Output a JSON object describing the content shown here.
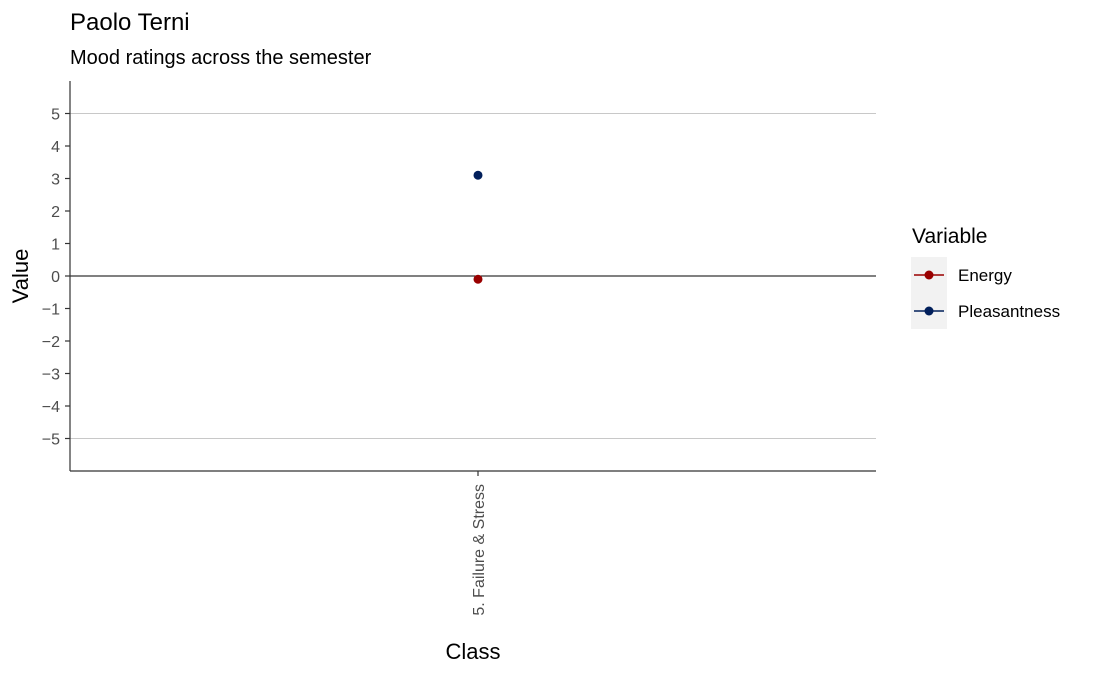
{
  "chart_data": {
    "type": "scatter",
    "title": "Paolo Terni",
    "subtitle": "Mood ratings across the semester",
    "xlabel": "Class",
    "ylabel": "Value",
    "categories": [
      "5. Failure & Stress"
    ],
    "ylim": [
      -6,
      6
    ],
    "yticks": [
      5,
      4,
      3,
      2,
      1,
      0,
      -1,
      -2,
      -3,
      -4,
      -5
    ],
    "ytick_labels": [
      "5",
      "4",
      "3",
      "2",
      "1",
      "0",
      "−1",
      "−2",
      "−3",
      "−4",
      "−5"
    ],
    "gridlines_y": [
      5,
      -5
    ],
    "reference_line_y": 0,
    "legend": {
      "title": "Variable",
      "placement": "right"
    },
    "series": [
      {
        "name": "Energy",
        "color": "#990000",
        "values": [
          -0.1
        ]
      },
      {
        "name": "Pleasantness",
        "color": "#011f5b",
        "values": [
          3.1
        ]
      }
    ]
  }
}
